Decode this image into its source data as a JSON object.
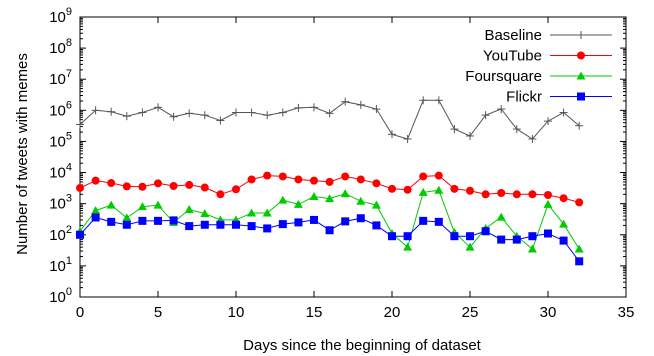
{
  "chart_data": {
    "type": "line",
    "xlabel": "Days since the beginning of dataset",
    "ylabel": "Number of tweets with memes",
    "xlim": [
      0,
      35
    ],
    "ylim": [
      1,
      1000000000
    ],
    "yscale": "log",
    "x_ticks": [
      0,
      5,
      10,
      15,
      20,
      25,
      30,
      35
    ],
    "x_tick_labels": [
      "0",
      "5",
      "10",
      "15",
      "20",
      "25",
      "30",
      "35"
    ],
    "y_tick_exponents": [
      0,
      1,
      2,
      3,
      4,
      5,
      6,
      7,
      8,
      9
    ],
    "y_tick_base": "10",
    "grid": false,
    "legend_position": "top-right",
    "x": [
      0,
      1,
      2,
      3,
      4,
      5,
      6,
      7,
      8,
      9,
      10,
      11,
      12,
      13,
      14,
      15,
      16,
      17,
      18,
      19,
      20,
      21,
      22,
      23,
      24,
      25,
      26,
      27,
      28,
      29,
      30,
      31,
      32
    ],
    "series": [
      {
        "name": "Baseline",
        "color": "#555555",
        "marker": "plus",
        "values": [
          350000,
          1000000,
          900000,
          650000,
          850000,
          1250000,
          620000,
          800000,
          700000,
          470000,
          850000,
          850000,
          700000,
          850000,
          1200000,
          1250000,
          800000,
          1900000,
          1500000,
          1100000,
          170000,
          120000,
          2100000,
          2100000,
          250000,
          150000,
          700000,
          1100000,
          250000,
          120000,
          450000,
          850000,
          320000
        ]
      },
      {
        "name": "YouTube",
        "color": "#ff0000",
        "marker": "circle",
        "values": [
          3200,
          5500,
          4600,
          3600,
          3500,
          4500,
          3700,
          4000,
          3300,
          2000,
          2900,
          6000,
          8000,
          7500,
          6000,
          5500,
          5000,
          7500,
          6000,
          4500,
          3000,
          2800,
          7500,
          8000,
          3000,
          2600,
          2000,
          2200,
          2000,
          2000,
          1900,
          1500,
          1100
        ]
      },
      {
        "name": "Foursquare",
        "color": "#00cc00",
        "marker": "triangle",
        "values": [
          130,
          600,
          900,
          350,
          800,
          900,
          250,
          650,
          480,
          300,
          300,
          500,
          500,
          1300,
          950,
          1700,
          1450,
          2100,
          1200,
          900,
          110,
          40,
          2300,
          2700,
          120,
          40,
          160,
          370,
          90,
          35,
          950,
          220,
          35
        ]
      },
      {
        "name": "Flickr",
        "color": "#0000ff",
        "marker": "square",
        "values": [
          100,
          360,
          260,
          210,
          280,
          280,
          290,
          190,
          210,
          210,
          210,
          190,
          160,
          220,
          250,
          300,
          140,
          270,
          340,
          200,
          90,
          90,
          280,
          260,
          90,
          90,
          130,
          70,
          70,
          90,
          110,
          65,
          14
        ]
      }
    ]
  }
}
